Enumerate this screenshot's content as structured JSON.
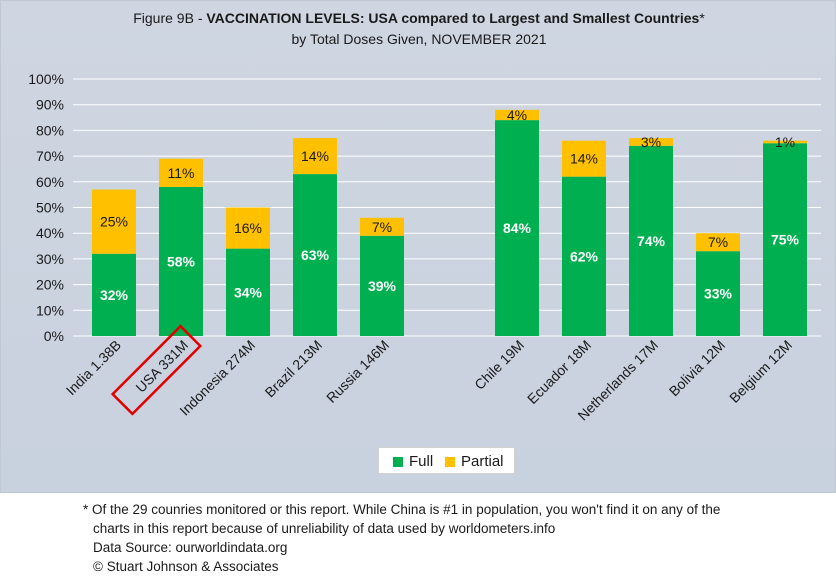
{
  "title": {
    "prefix": "Figure 9B - ",
    "bold": "VACCINATION LEVELS:  USA compared to Largest and Smallest Countries",
    "suffix": "*",
    "subtitle": "by Total Doses Given, NOVEMBER 2021"
  },
  "chart_data": {
    "type": "bar",
    "stacked": true,
    "categories": [
      "India 1.38B",
      "USA 331M",
      "Indonesia 274M",
      "Brazil 213M",
      "Russia 146M",
      "Chile 19M",
      "Ecuador 18M",
      "Netherlands 17M",
      "Bolivia 12M",
      "Belgium 12M"
    ],
    "series": [
      {
        "name": "Full",
        "color": "#00b050",
        "values": [
          32,
          58,
          34,
          63,
          39,
          84,
          62,
          74,
          33,
          75
        ],
        "labels": [
          "32%",
          "58%",
          "34%",
          "63%",
          "39%",
          "84%",
          "62%",
          "74%",
          "33%",
          "75%"
        ]
      },
      {
        "name": "Partial",
        "color": "#ffc000",
        "values": [
          25,
          11,
          16,
          14,
          7,
          4,
          14,
          3,
          7,
          1
        ],
        "labels": [
          "25%",
          "11%",
          "16%",
          "14%",
          "7%",
          "4%",
          "14%",
          "3%",
          "7%",
          "1%"
        ]
      }
    ],
    "ylim": [
      0,
      100
    ],
    "yticks": [
      "0%",
      "10%",
      "20%",
      "30%",
      "40%",
      "50%",
      "60%",
      "70%",
      "80%",
      "90%",
      "100%"
    ],
    "grid": true,
    "highlighted_category": "USA 331M",
    "highlight_color": "#e00000",
    "legend_position": "bottom"
  },
  "footnote": {
    "line1": "* Of the 29 counries monitored or this report. While China is #1 in population, you won't find it on any of the",
    "line2": "charts in this report because of unreliability of data used by worldometers.info",
    "line3": "Data Source:  ourworldindata.org",
    "line4": "© Stuart Johnson & Associates"
  }
}
